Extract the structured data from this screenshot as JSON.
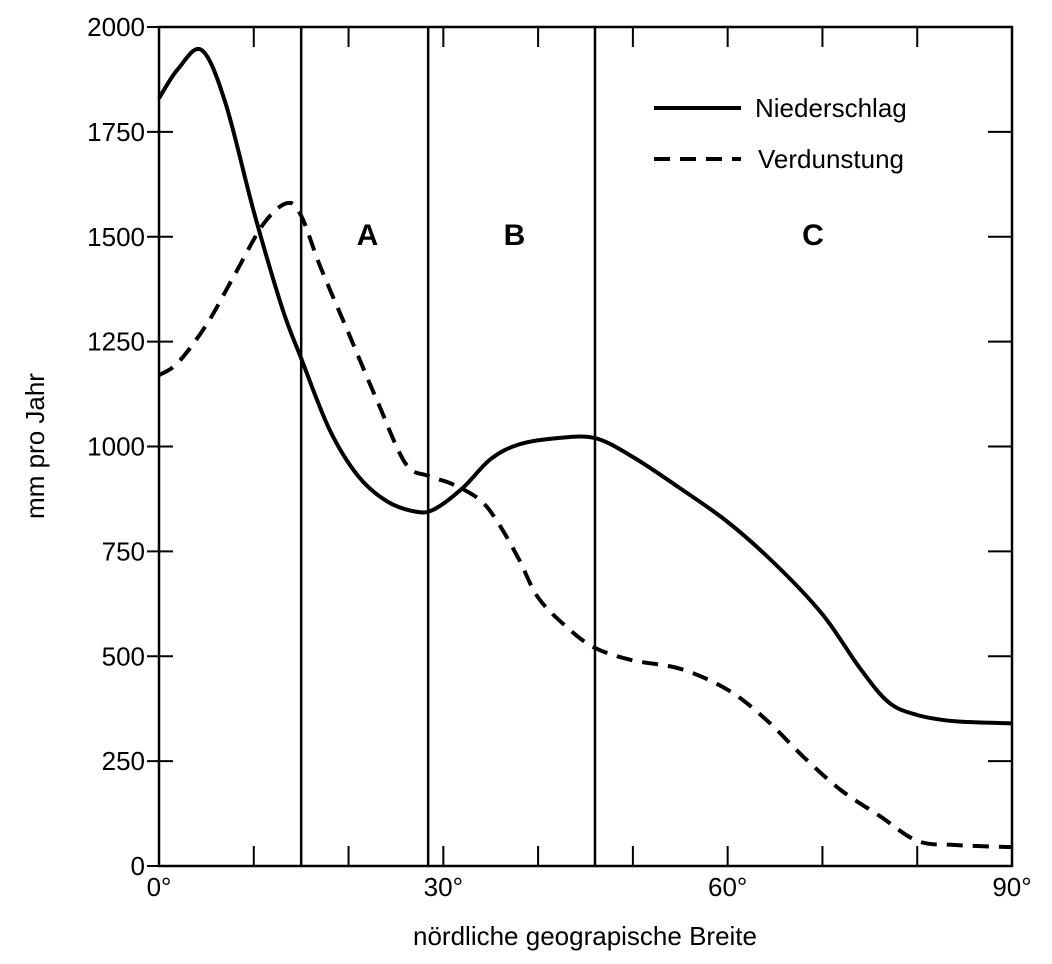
{
  "chart_data": {
    "type": "line",
    "title": "",
    "xlabel": "nördliche geograpische Breite",
    "ylabel": "mm pro Jahr",
    "xlim": [
      0,
      90
    ],
    "ylim": [
      0,
      2000
    ],
    "x_ticks": [
      0,
      10,
      20,
      30,
      40,
      50,
      60,
      70,
      80,
      90
    ],
    "x_tick_labels": [
      {
        "value": 0,
        "label": "0°"
      },
      {
        "value": 30,
        "label": "30°"
      },
      {
        "value": 60,
        "label": "60°"
      },
      {
        "value": 90,
        "label": "90°"
      }
    ],
    "y_ticks": [
      0,
      250,
      500,
      750,
      1000,
      1250,
      1500,
      1750,
      2000
    ],
    "y_tick_labels": [
      "0",
      "250",
      "500",
      "750",
      "1000",
      "1250",
      "1500",
      "1750",
      "2000"
    ],
    "grid": false,
    "legend_position": "upper right",
    "series": [
      {
        "name": "Niederschlag",
        "style": "solid",
        "x": [
          0,
          2,
          4.5,
          7,
          10,
          13,
          15,
          18,
          21,
          24,
          27,
          29,
          32,
          35,
          38,
          42,
          46,
          50,
          55,
          60,
          65,
          70,
          74,
          77,
          80,
          84,
          90
        ],
        "y": [
          1830,
          1900,
          1945,
          1820,
          1560,
          1330,
          1210,
          1040,
          930,
          870,
          845,
          850,
          900,
          970,
          1005,
          1020,
          1020,
          975,
          900,
          820,
          720,
          600,
          470,
          390,
          360,
          345,
          340
        ]
      },
      {
        "name": "Verdunstung",
        "style": "dashed",
        "x": [
          0,
          2,
          5,
          8,
          11,
          13.5,
          15,
          17,
          20,
          23,
          26,
          28.4,
          31,
          34,
          36,
          38,
          40,
          43,
          46,
          50,
          55,
          60,
          64,
          68,
          72,
          76,
          80,
          84,
          90
        ],
        "y": [
          1170,
          1200,
          1290,
          1410,
          1530,
          1580,
          1550,
          1430,
          1270,
          1110,
          960,
          930,
          910,
          870,
          810,
          730,
          640,
          570,
          520,
          490,
          470,
          420,
          350,
          260,
          180,
          120,
          60,
          50,
          45
        ]
      }
    ],
    "vertical_lines": [
      15,
      28.4,
      46
    ],
    "regions": [
      {
        "label": "A",
        "x": 22,
        "y": 1480
      },
      {
        "label": "B",
        "x": 37.5,
        "y": 1480
      },
      {
        "label": "C",
        "x": 69,
        "y": 1480
      }
    ]
  },
  "legend": {
    "items": [
      {
        "label": "Niederschlag",
        "style": "solid"
      },
      {
        "label": "Verdunstung",
        "style": "dashed"
      }
    ]
  },
  "colors": {
    "line": "#000000",
    "background": "#ffffff"
  }
}
